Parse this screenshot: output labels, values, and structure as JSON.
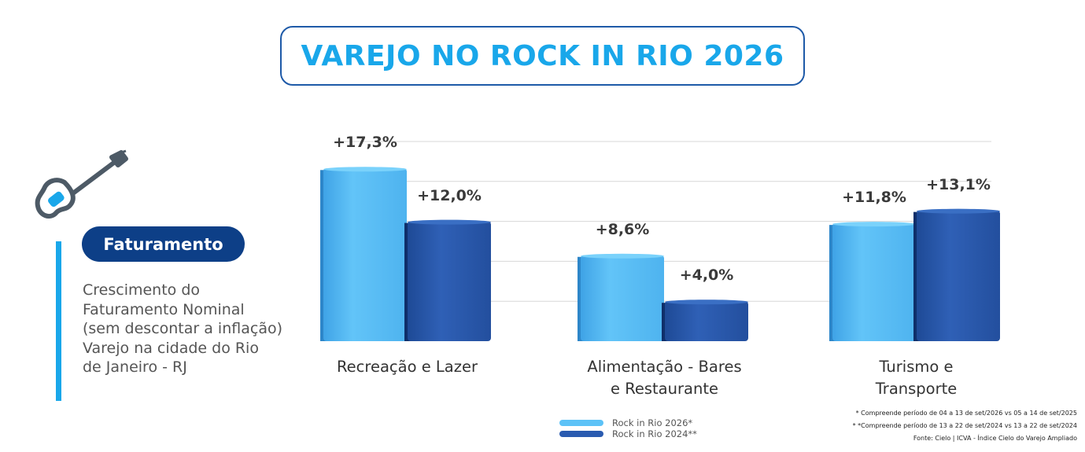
{
  "title": "VAREJO NO ROCK IN RIO 2026",
  "sidebar": {
    "badge": "Faturamento",
    "description_lines": [
      "Crescimento do",
      "Faturamento Nominal",
      "(sem descontar a inflação)",
      "Varejo na cidade do Rio",
      "de Janeiro - RJ"
    ]
  },
  "colors": {
    "title": "#19a7ea",
    "badge": "#0d3f87",
    "series_2026": "#5cc2f7",
    "series_2024": "#2a5bb0"
  },
  "icons": [
    "guitar-icon"
  ],
  "chart_data": {
    "type": "bar",
    "title": "",
    "xlabel": "",
    "ylabel": "",
    "grid": true,
    "legend_position": "bottom",
    "ylim": [
      0,
      20
    ],
    "categories": [
      [
        "Recreação e Lazer"
      ],
      [
        "Alimentação - Bares",
        "e Restaurante"
      ],
      [
        "Turismo e",
        "Transporte"
      ]
    ],
    "series": [
      {
        "name": "Rock in Rio 2026*",
        "values": [
          17.3,
          8.6,
          11.8
        ],
        "labels": [
          "+17,3%",
          "+8,6%",
          "+11,8%"
        ]
      },
      {
        "name": "Rock in Rio 2024**",
        "values": [
          12.0,
          4.0,
          13.1
        ],
        "labels": [
          "+12,0%",
          "+4,0%",
          "+13,1%"
        ]
      }
    ]
  },
  "footnotes": [
    "* Compreende período de 04 a 13 de set/2026 vs 05 a 14 de set/2025",
    "* *Compreende período de 13 a 22 de set/2024 vs 13 a 22 de set/2024",
    "Fonte: Cielo | ICVA - Índice Cielo do Varejo Ampliado"
  ]
}
